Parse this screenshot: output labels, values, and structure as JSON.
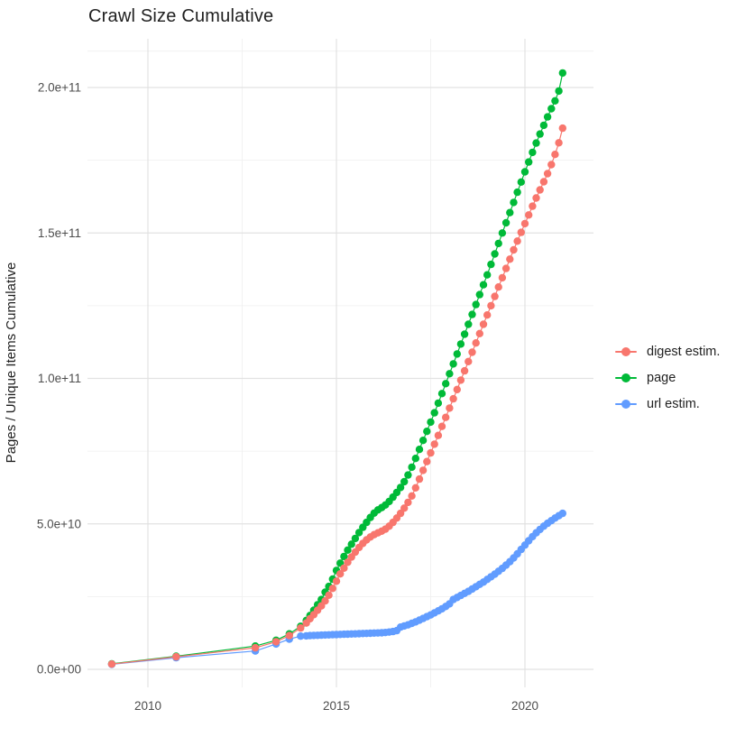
{
  "chart": {
    "title": "Crawl Size Cumulative",
    "y_axis_title": "Pages / Unique Items Cumulative",
    "tick_label_color": "#4d4d4d",
    "major_grid_color": "#e2e2e2",
    "minor_grid_color": "#efefef"
  },
  "legend": {
    "position": "right",
    "items": [
      {
        "label": "digest estim.",
        "color": "#F8766D"
      },
      {
        "label": "page",
        "color": "#00BA38"
      },
      {
        "label": "url estim.",
        "color": "#619CFF"
      }
    ]
  },
  "chart_data": {
    "type": "scatter",
    "title": "Crawl Size Cumulative",
    "xlabel": "",
    "ylabel": "Pages / Unique Items Cumulative",
    "x_unit": "year",
    "y_values_unit": "billions (1e9 items)",
    "xlim": [
      2008.5,
      2021.8
    ],
    "ylim": [
      0,
      216000000000
    ],
    "grid": true,
    "legend_position": "right",
    "x_ticks": [
      {
        "label": "2010",
        "year": 2010
      },
      {
        "label": "2015",
        "year": 2015
      },
      {
        "label": "2020",
        "year": 2020
      }
    ],
    "x_minor_gridlines": [
      2012.5,
      2017.5
    ],
    "y_ticks": [
      {
        "label": "0.0e+00",
        "value": 0
      },
      {
        "label": "5.0e+10",
        "value": 50
      },
      {
        "label": "1.0e+11",
        "value": 100
      },
      {
        "label": "1.5e+11",
        "value": 150
      },
      {
        "label": "2.0e+11",
        "value": 200
      }
    ],
    "y_minor_gridlines": [
      25,
      75,
      125,
      175,
      212.5
    ],
    "series": [
      {
        "name": "digest estim.",
        "color": "#F8766D",
        "points": [
          [
            2009.04,
            1.8
          ],
          [
            2010.75,
            4.3
          ],
          [
            2012.85,
            7.4
          ],
          [
            2013.4,
            9.5
          ],
          [
            2013.75,
            11.6
          ],
          [
            2014.05,
            14.2
          ],
          [
            2014.2,
            15.9
          ],
          [
            2014.3,
            17.4
          ],
          [
            2014.4,
            18.8
          ],
          [
            2014.5,
            20.3
          ],
          [
            2014.6,
            21.8
          ],
          [
            2014.7,
            23.5
          ],
          [
            2014.8,
            25.5
          ],
          [
            2014.9,
            27.8
          ],
          [
            2015.0,
            30.3
          ],
          [
            2015.1,
            32.8
          ],
          [
            2015.2,
            34.8
          ],
          [
            2015.3,
            36.8
          ],
          [
            2015.4,
            38.6
          ],
          [
            2015.5,
            40.3
          ],
          [
            2015.6,
            41.9
          ],
          [
            2015.7,
            43.3
          ],
          [
            2015.8,
            44.5
          ],
          [
            2015.9,
            45.5
          ],
          [
            2016.0,
            46.3
          ],
          [
            2016.1,
            46.9
          ],
          [
            2016.2,
            47.5
          ],
          [
            2016.3,
            48.2
          ],
          [
            2016.4,
            49.2
          ],
          [
            2016.5,
            50.5
          ],
          [
            2016.6,
            52.0
          ],
          [
            2016.7,
            53.6
          ],
          [
            2016.8,
            55.4
          ],
          [
            2016.9,
            57.4
          ],
          [
            2017.0,
            59.6
          ],
          [
            2017.1,
            62.4
          ],
          [
            2017.2,
            65.4
          ],
          [
            2017.3,
            68.4
          ],
          [
            2017.4,
            71.4
          ],
          [
            2017.5,
            74.4
          ],
          [
            2017.6,
            77.4
          ],
          [
            2017.7,
            80.4
          ],
          [
            2017.8,
            83.5
          ],
          [
            2017.9,
            86.6
          ],
          [
            2018.0,
            89.8
          ],
          [
            2018.1,
            93.0
          ],
          [
            2018.2,
            96.2
          ],
          [
            2018.3,
            99.4
          ],
          [
            2018.4,
            102.6
          ],
          [
            2018.5,
            105.8
          ],
          [
            2018.6,
            109.0
          ],
          [
            2018.7,
            112.2
          ],
          [
            2018.8,
            115.4
          ],
          [
            2018.9,
            118.6
          ],
          [
            2019.0,
            121.8
          ],
          [
            2019.1,
            125.0
          ],
          [
            2019.2,
            128.2
          ],
          [
            2019.3,
            131.4
          ],
          [
            2019.4,
            134.6
          ],
          [
            2019.5,
            137.8
          ],
          [
            2019.6,
            141.0
          ],
          [
            2019.7,
            144.2
          ],
          [
            2019.8,
            147.2
          ],
          [
            2019.9,
            150.2
          ],
          [
            2020.0,
            153.2
          ],
          [
            2020.1,
            156.2
          ],
          [
            2020.2,
            159.2
          ],
          [
            2020.3,
            162.0
          ],
          [
            2020.4,
            164.8
          ],
          [
            2020.5,
            167.6
          ],
          [
            2020.6,
            170.4
          ],
          [
            2020.7,
            173.5
          ],
          [
            2020.8,
            177.0
          ],
          [
            2020.9,
            181.0
          ],
          [
            2021.0,
            186.0
          ]
        ]
      },
      {
        "name": "page",
        "color": "#00BA38",
        "points": [
          [
            2009.04,
            1.9
          ],
          [
            2010.75,
            4.5
          ],
          [
            2012.85,
            8.0
          ],
          [
            2013.4,
            10.0
          ],
          [
            2013.75,
            12.2
          ],
          [
            2014.05,
            14.8
          ],
          [
            2014.2,
            16.8
          ],
          [
            2014.3,
            18.5
          ],
          [
            2014.4,
            20.3
          ],
          [
            2014.5,
            22.2
          ],
          [
            2014.6,
            24.0
          ],
          [
            2014.7,
            26.5
          ],
          [
            2014.8,
            28.5
          ],
          [
            2014.9,
            31.0
          ],
          [
            2015.0,
            34.0
          ],
          [
            2015.1,
            36.5
          ],
          [
            2015.2,
            38.8
          ],
          [
            2015.3,
            41.0
          ],
          [
            2015.4,
            43.0
          ],
          [
            2015.5,
            45.0
          ],
          [
            2015.6,
            47.0
          ],
          [
            2015.7,
            48.8
          ],
          [
            2015.8,
            50.5
          ],
          [
            2015.9,
            52.2
          ],
          [
            2016.0,
            53.7
          ],
          [
            2016.1,
            54.8
          ],
          [
            2016.2,
            55.6
          ],
          [
            2016.3,
            56.5
          ],
          [
            2016.4,
            57.7
          ],
          [
            2016.5,
            59.2
          ],
          [
            2016.6,
            60.8
          ],
          [
            2016.7,
            62.5
          ],
          [
            2016.8,
            64.5
          ],
          [
            2016.9,
            66.8
          ],
          [
            2017.0,
            69.5
          ],
          [
            2017.1,
            72.5
          ],
          [
            2017.2,
            75.6
          ],
          [
            2017.3,
            78.7
          ],
          [
            2017.4,
            81.8
          ],
          [
            2017.5,
            85.0
          ],
          [
            2017.6,
            88.2
          ],
          [
            2017.7,
            91.5
          ],
          [
            2017.8,
            94.8
          ],
          [
            2017.9,
            98.2
          ],
          [
            2018.0,
            101.6
          ],
          [
            2018.1,
            105.0
          ],
          [
            2018.2,
            108.4
          ],
          [
            2018.3,
            111.8
          ],
          [
            2018.4,
            115.2
          ],
          [
            2018.5,
            118.6
          ],
          [
            2018.6,
            122.0
          ],
          [
            2018.7,
            125.4
          ],
          [
            2018.8,
            128.8
          ],
          [
            2018.9,
            132.2
          ],
          [
            2019.0,
            135.6
          ],
          [
            2019.1,
            139.2
          ],
          [
            2019.2,
            142.8
          ],
          [
            2019.3,
            146.4
          ],
          [
            2019.4,
            150.0
          ],
          [
            2019.5,
            153.5
          ],
          [
            2019.6,
            157.0
          ],
          [
            2019.7,
            160.5
          ],
          [
            2019.8,
            164.0
          ],
          [
            2019.9,
            167.5
          ],
          [
            2020.0,
            171.0
          ],
          [
            2020.1,
            174.4
          ],
          [
            2020.2,
            177.7
          ],
          [
            2020.3,
            180.9
          ],
          [
            2020.4,
            184.0
          ],
          [
            2020.5,
            187.0
          ],
          [
            2020.6,
            189.9
          ],
          [
            2020.7,
            192.7
          ],
          [
            2020.8,
            195.4
          ],
          [
            2020.9,
            198.8
          ],
          [
            2021.0,
            205.0
          ]
        ]
      },
      {
        "name": "url estim.",
        "color": "#619CFF",
        "points": [
          [
            2009.04,
            1.7
          ],
          [
            2010.75,
            4.0
          ],
          [
            2012.85,
            6.3
          ],
          [
            2013.4,
            8.7
          ],
          [
            2013.75,
            10.4
          ],
          [
            2014.05,
            11.4
          ],
          [
            2014.2,
            11.5
          ],
          [
            2014.3,
            11.6
          ],
          [
            2014.4,
            11.65
          ],
          [
            2014.5,
            11.7
          ],
          [
            2014.6,
            11.75
          ],
          [
            2014.7,
            11.8
          ],
          [
            2014.8,
            11.85
          ],
          [
            2014.9,
            11.9
          ],
          [
            2015.0,
            11.95
          ],
          [
            2015.1,
            12.0
          ],
          [
            2015.2,
            12.05
          ],
          [
            2015.3,
            12.1
          ],
          [
            2015.4,
            12.15
          ],
          [
            2015.5,
            12.2
          ],
          [
            2015.6,
            12.25
          ],
          [
            2015.7,
            12.3
          ],
          [
            2015.8,
            12.35
          ],
          [
            2015.9,
            12.4
          ],
          [
            2016.0,
            12.45
          ],
          [
            2016.1,
            12.5
          ],
          [
            2016.2,
            12.55
          ],
          [
            2016.3,
            12.65
          ],
          [
            2016.4,
            12.8
          ],
          [
            2016.5,
            13.0
          ],
          [
            2016.6,
            13.3
          ],
          [
            2016.7,
            14.5
          ],
          [
            2016.8,
            14.9
          ],
          [
            2016.9,
            15.3
          ],
          [
            2017.0,
            15.8
          ],
          [
            2017.1,
            16.3
          ],
          [
            2017.2,
            16.9
          ],
          [
            2017.3,
            17.5
          ],
          [
            2017.4,
            18.1
          ],
          [
            2017.5,
            18.7
          ],
          [
            2017.6,
            19.4
          ],
          [
            2017.7,
            20.1
          ],
          [
            2017.8,
            20.8
          ],
          [
            2017.9,
            21.6
          ],
          [
            2018.0,
            22.5
          ],
          [
            2018.1,
            24.0
          ],
          [
            2018.2,
            24.7
          ],
          [
            2018.3,
            25.4
          ],
          [
            2018.4,
            26.1
          ],
          [
            2018.5,
            26.8
          ],
          [
            2018.6,
            27.6
          ],
          [
            2018.7,
            28.4
          ],
          [
            2018.8,
            29.2
          ],
          [
            2018.9,
            30.0
          ],
          [
            2019.0,
            30.9
          ],
          [
            2019.1,
            31.8
          ],
          [
            2019.2,
            32.7
          ],
          [
            2019.3,
            33.7
          ],
          [
            2019.4,
            34.7
          ],
          [
            2019.5,
            35.8
          ],
          [
            2019.6,
            37.0
          ],
          [
            2019.7,
            38.3
          ],
          [
            2019.8,
            39.7
          ],
          [
            2019.9,
            41.2
          ],
          [
            2020.0,
            42.7
          ],
          [
            2020.1,
            44.2
          ],
          [
            2020.2,
            45.6
          ],
          [
            2020.3,
            46.9
          ],
          [
            2020.4,
            48.1
          ],
          [
            2020.5,
            49.2
          ],
          [
            2020.6,
            50.2
          ],
          [
            2020.7,
            51.1
          ],
          [
            2020.8,
            52.0
          ],
          [
            2020.9,
            52.8
          ],
          [
            2021.0,
            53.6
          ]
        ]
      }
    ]
  }
}
